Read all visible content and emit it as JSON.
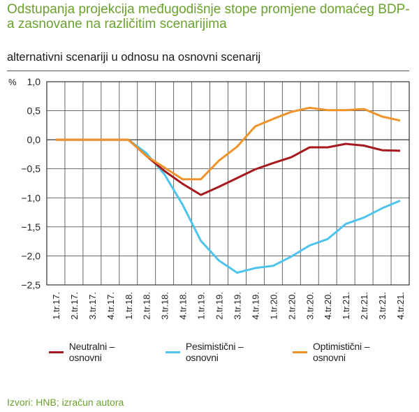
{
  "header": {
    "title": "Odstupanja projekcija međugodišnje stope promjene domaćeg BDP-a zasnovane na različitim scenarijima",
    "subtitle": "alternativni scenariji u odnosu na osnovni scenarij"
  },
  "footer": {
    "source": "Izvori: HNB; izračun autora"
  },
  "colors": {
    "title": "#6aa22c",
    "neutral": "#a6191e",
    "pessimistic": "#4ec3ec",
    "optimistic": "#f0932a"
  },
  "chart_data": {
    "type": "line",
    "title": "Odstupanja projekcija međugodišnje stope promjene domaćeg BDP-a zasnovane na različitim scenarijima",
    "subtitle": "alternativni scenariji u odnosu na osnovni scenarij",
    "xlabel": "",
    "ylabel": "%",
    "ylim": [
      -2.5,
      1.0
    ],
    "yticks": [
      1.0,
      0.5,
      0.0,
      -0.5,
      -1.0,
      -1.5,
      -2.0,
      -2.5
    ],
    "ytick_labels": [
      "1,0",
      "0,5",
      "0,0",
      "−0,5",
      "−1,0",
      "−1,5",
      "−2,0",
      "−2,5"
    ],
    "grid": true,
    "legend_position": "bottom",
    "categories": [
      "1.tr.17.",
      "2.tr.17.",
      "3.tr.17.",
      "4.tr.17.",
      "1.tr.18.",
      "2.tr.18.",
      "3.tr.18.",
      "4.tr.18.",
      "1.tr.19.",
      "2.tr.19.",
      "3.tr.19.",
      "4.tr.19.",
      "1.tr.20.",
      "2.tr.20.",
      "3.tr.20.",
      "4.tr.20.",
      "1.tr.21.",
      "2.tr.21.",
      "3.tr.21.",
      "4.tr.21."
    ],
    "series": [
      {
        "name": "Neutralni – osnovni",
        "color": "#a6191e",
        "values": [
          0.0,
          0.0,
          0.0,
          0.0,
          0.0,
          -0.28,
          -0.54,
          -0.76,
          -0.95,
          -0.81,
          -0.66,
          -0.51,
          -0.4,
          -0.3,
          -0.13,
          -0.13,
          -0.07,
          -0.1,
          -0.18,
          -0.19
        ]
      },
      {
        "name": "Pesimistični – osnovni",
        "color": "#4ec3ec",
        "values": [
          0.0,
          0.0,
          0.0,
          0.0,
          0.0,
          -0.23,
          -0.6,
          -1.12,
          -1.74,
          -2.08,
          -2.29,
          -2.21,
          -2.17,
          -2.01,
          -1.82,
          -1.71,
          -1.45,
          -1.34,
          -1.18,
          -1.05
        ]
      },
      {
        "name": "Optimistični – osnovni",
        "color": "#f0932a",
        "values": [
          0.0,
          0.0,
          0.0,
          0.0,
          0.0,
          -0.28,
          -0.48,
          -0.68,
          -0.68,
          -0.36,
          -0.12,
          0.23,
          0.36,
          0.48,
          0.55,
          0.51,
          0.51,
          0.53,
          0.4,
          0.33
        ]
      }
    ]
  }
}
